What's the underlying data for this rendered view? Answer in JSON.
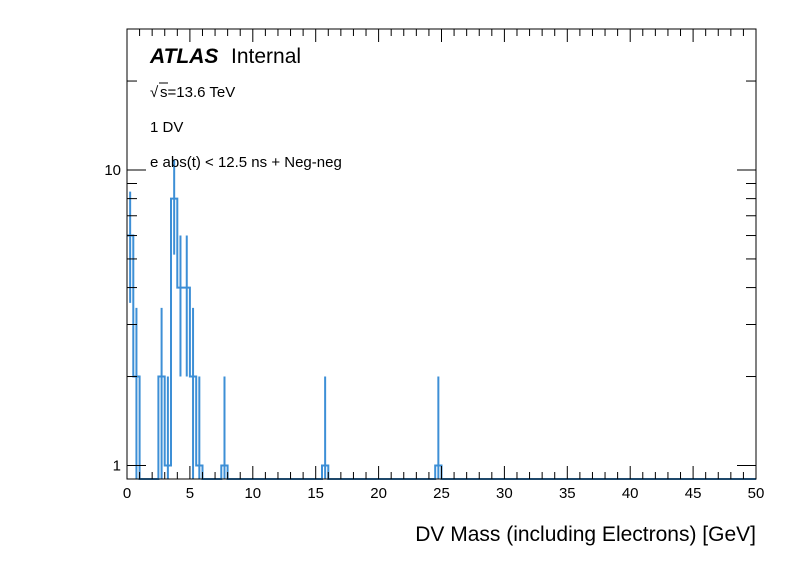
{
  "labels": {
    "atlas": "ATLAS",
    "status": "Internal",
    "energy": "s=13.6 TeV",
    "energy_root": "√",
    "selection": "1 DV",
    "cut": "e abs(t) < 12.5 ns + Neg-neg"
  },
  "chart_data": {
    "type": "histogram",
    "xlabel": "DV Mass (including Electrons) [GeV]",
    "ylabel": "",
    "xlim": [
      0,
      50
    ],
    "ylim": [
      0.9,
      30
    ],
    "yscale": "log",
    "bin_width": 0.5,
    "x_ticks": [
      0,
      5,
      10,
      15,
      20,
      25,
      30,
      35,
      40,
      45,
      50
    ],
    "y_tick_labels": [
      {
        "value": 1,
        "label": "1"
      },
      {
        "value": 10,
        "label": "10"
      }
    ],
    "line_color": "#3d8fd6",
    "bins": [
      {
        "x_low": 0.0,
        "x_high": 0.5,
        "count": 6
      },
      {
        "x_low": 0.5,
        "x_high": 1.0,
        "count": 2
      },
      {
        "x_low": 2.5,
        "x_high": 3.0,
        "count": 2
      },
      {
        "x_low": 3.0,
        "x_high": 3.5,
        "count": 1
      },
      {
        "x_low": 3.5,
        "x_high": 4.0,
        "count": 8
      },
      {
        "x_low": 4.0,
        "x_high": 4.5,
        "count": 4
      },
      {
        "x_low": 4.5,
        "x_high": 5.0,
        "count": 4
      },
      {
        "x_low": 5.0,
        "x_high": 5.5,
        "count": 2
      },
      {
        "x_low": 5.5,
        "x_high": 6.0,
        "count": 1
      },
      {
        "x_low": 7.5,
        "x_high": 8.0,
        "count": 1
      },
      {
        "x_low": 15.5,
        "x_high": 16.0,
        "count": 1
      },
      {
        "x_low": 24.5,
        "x_high": 25.0,
        "count": 1
      }
    ]
  }
}
